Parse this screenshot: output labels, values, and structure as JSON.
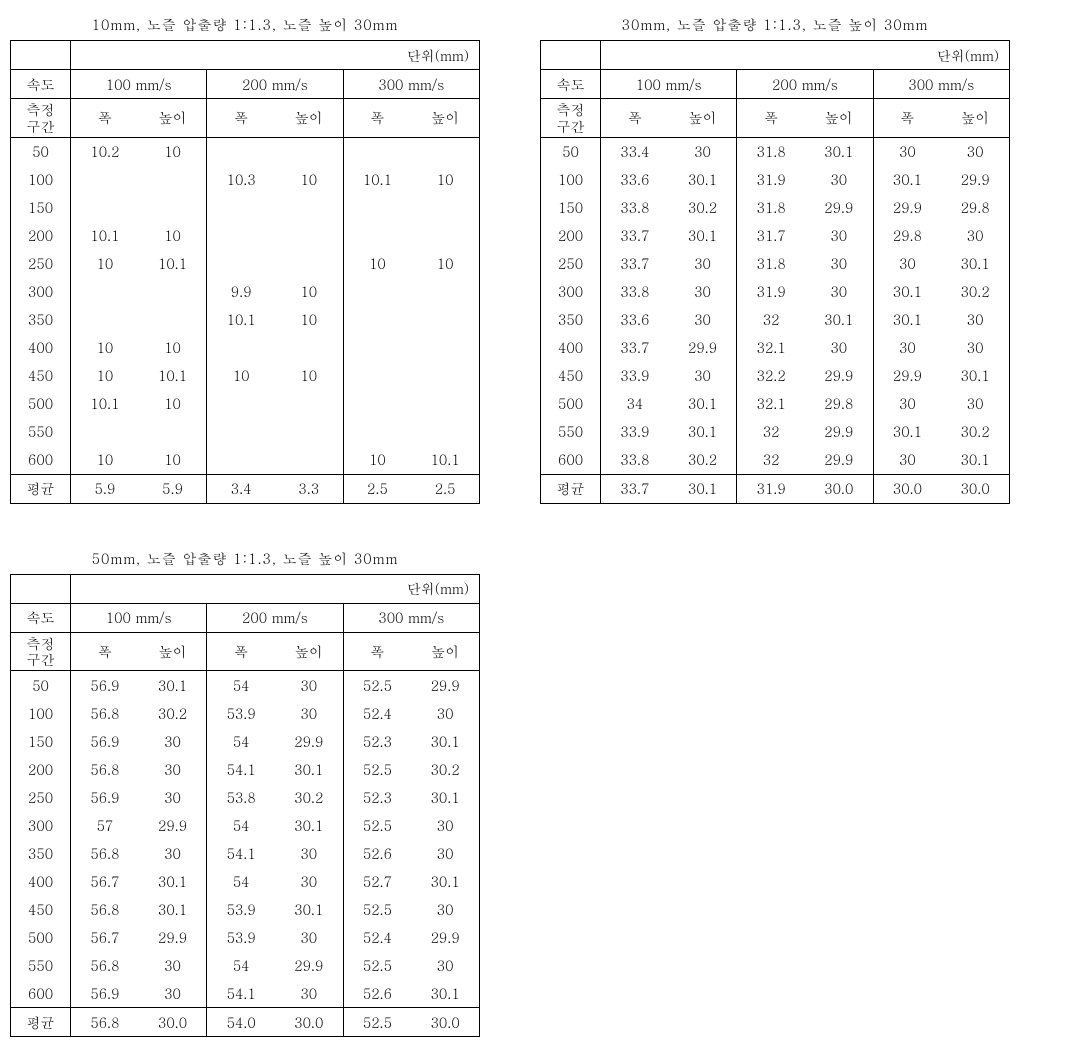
{
  "font_family": "Malgun Gothic",
  "font_size_pt": 11,
  "colors": {
    "text": "#000000",
    "background": "#ffffff",
    "border": "#000000"
  },
  "common": {
    "unit_label": "단위(mm)",
    "speed_label": "속도",
    "interval_label_line1": "측정",
    "interval_label_line2": "구간",
    "width_label": "폭",
    "height_label": "높이",
    "average_label": "평균",
    "speed_headers": [
      "100 mm/s",
      "200 mm/s",
      "300 mm/s"
    ],
    "row_labels": [
      "50",
      "100",
      "150",
      "200",
      "250",
      "300",
      "350",
      "400",
      "450",
      "500",
      "550",
      "600"
    ]
  },
  "tables": [
    {
      "title": "10mm, 노즐 압출량  1:1.3, 노즐 높이 30mm",
      "rows": [
        [
          "10.2",
          "10",
          "",
          "",
          "",
          ""
        ],
        [
          "",
          "",
          "10.3",
          "10",
          "10.1",
          "10"
        ],
        [
          "",
          "",
          "",
          "",
          "",
          ""
        ],
        [
          "10.1",
          "10",
          "",
          "",
          "",
          ""
        ],
        [
          "10",
          "10.1",
          "",
          "",
          "10",
          "10"
        ],
        [
          "",
          "",
          "9.9",
          "10",
          "",
          ""
        ],
        [
          "",
          "",
          "10.1",
          "10",
          "",
          ""
        ],
        [
          "10",
          "10",
          "",
          "",
          "",
          ""
        ],
        [
          "10",
          "10.1",
          "10",
          "10",
          "",
          ""
        ],
        [
          "10.1",
          "10",
          "",
          "",
          "",
          ""
        ],
        [
          "",
          "",
          "",
          "",
          "",
          ""
        ],
        [
          "10",
          "10",
          "",
          "",
          "10",
          "10.1"
        ]
      ],
      "avg": [
        "5.9",
        "5.9",
        "3.4",
        "3.3",
        "2.5",
        "2.5"
      ]
    },
    {
      "title": "30mm, 노즐 압출량 1:1.3, 노즐 높이 30mm",
      "rows": [
        [
          "33.4",
          "30",
          "31.8",
          "30.1",
          "30",
          "30"
        ],
        [
          "33.6",
          "30.1",
          "31.9",
          "30",
          "30.1",
          "29.9"
        ],
        [
          "33.8",
          "30.2",
          "31.8",
          "29.9",
          "29.9",
          "29.8"
        ],
        [
          "33.7",
          "30.1",
          "31.7",
          "30",
          "29.8",
          "30"
        ],
        [
          "33.7",
          "30",
          "31.8",
          "30",
          "30",
          "30.1"
        ],
        [
          "33.8",
          "30",
          "31.9",
          "30",
          "30.1",
          "30.2"
        ],
        [
          "33.6",
          "30",
          "32",
          "30.1",
          "30.1",
          "30"
        ],
        [
          "33.7",
          "29.9",
          "32.1",
          "30",
          "30",
          "30"
        ],
        [
          "33.9",
          "30",
          "32.2",
          "29.9",
          "29.9",
          "30.1"
        ],
        [
          "34",
          "30.1",
          "32.1",
          "29.8",
          "30",
          "30"
        ],
        [
          "33.9",
          "30.1",
          "32",
          "29.9",
          "30.1",
          "30.2"
        ],
        [
          "33.8",
          "30.2",
          "32",
          "29.9",
          "30",
          "30.1"
        ]
      ],
      "avg": [
        "33.7",
        "30.1",
        "31.9",
        "30.0",
        "30.0",
        "30.0"
      ]
    },
    {
      "title": "50mm, 노즐 압출량 1:1.3, 노즐 높이 30mm",
      "rows": [
        [
          "56.9",
          "30.1",
          "54",
          "30",
          "52.5",
          "29.9"
        ],
        [
          "56.8",
          "30.2",
          "53.9",
          "30",
          "52.4",
          "30"
        ],
        [
          "56.9",
          "30",
          "54",
          "29.9",
          "52.3",
          "30.1"
        ],
        [
          "56.8",
          "30",
          "54.1",
          "30.1",
          "52.5",
          "30.2"
        ],
        [
          "56.9",
          "30",
          "53.8",
          "30.2",
          "52.3",
          "30.1"
        ],
        [
          "57",
          "29.9",
          "54",
          "30.1",
          "52.5",
          "30"
        ],
        [
          "56.8",
          "30",
          "54.1",
          "30",
          "52.6",
          "30"
        ],
        [
          "56.7",
          "30.1",
          "54",
          "30",
          "52.7",
          "30.1"
        ],
        [
          "56.8",
          "30.1",
          "53.9",
          "30.1",
          "52.5",
          "30"
        ],
        [
          "56.7",
          "29.9",
          "53.9",
          "30",
          "52.4",
          "29.9"
        ],
        [
          "56.8",
          "30",
          "54",
          "29.9",
          "52.5",
          "30"
        ],
        [
          "56.9",
          "30",
          "54.1",
          "30",
          "52.6",
          "30.1"
        ]
      ],
      "avg": [
        "56.8",
        "30.0",
        "54.0",
        "30.0",
        "52.5",
        "30.0"
      ]
    }
  ]
}
